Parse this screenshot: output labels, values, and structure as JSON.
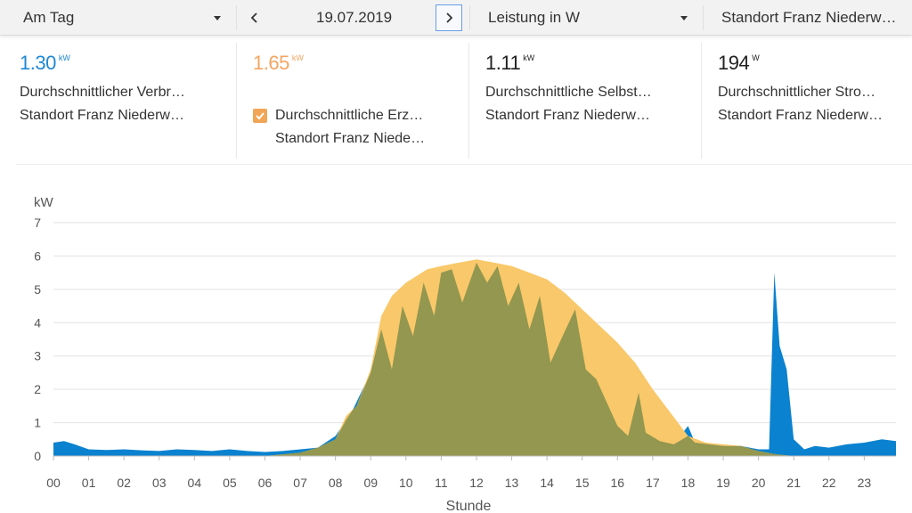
{
  "toolbar": {
    "period": "Am Tag",
    "date": "19.07.2019",
    "prev_icon": "chevron-left-icon",
    "next_icon": "chevron-right-icon",
    "unit": "Leistung in W",
    "site": "Standort Franz Niederw…"
  },
  "stats": [
    {
      "value": "1.30",
      "unit": "kW",
      "label1": "Durchschnittlicher Verbr…",
      "label2": "Standort Franz Niederw…",
      "color": "#1e88d6"
    },
    {
      "value": "1.65",
      "unit": "kW",
      "label1": "Durchschnittliche Erz…",
      "label2": "Standort Franz Niede…",
      "color": "#f4a562",
      "checked": true
    },
    {
      "value": "1.11",
      "unit": "kW",
      "label1": "Durchschnittliche Selbst…",
      "label2": "Standort Franz Niederw…",
      "color": "#222222"
    },
    {
      "value": "194",
      "unit": "W",
      "label1": "Durchschnittlicher Stro…",
      "label2": "Standort Franz Niederw…",
      "color": "#222222"
    }
  ],
  "colors": {
    "consumption": "#0a82cf",
    "production": "#f9c86a",
    "self_consumption": "#93974f",
    "grid": "#e2e2e2",
    "axis_text": "#555555"
  },
  "chart_data": {
    "type": "area",
    "ylabel": "kW",
    "xlabel": "Stunde",
    "ylim": [
      0,
      7
    ],
    "yticks": [
      "0",
      "1",
      "2",
      "3",
      "4",
      "5",
      "6",
      "7"
    ],
    "xticks": [
      "00",
      "01",
      "02",
      "03",
      "04",
      "05",
      "06",
      "07",
      "08",
      "09",
      "10",
      "11",
      "12",
      "13",
      "14",
      "15",
      "16",
      "17",
      "18",
      "19",
      "20",
      "21",
      "22",
      "23"
    ],
    "grid": true,
    "series": [
      {
        "key": "consumption",
        "points": [
          [
            0,
            0.4
          ],
          [
            0.3,
            0.45
          ],
          [
            0.6,
            0.35
          ],
          [
            1,
            0.2
          ],
          [
            1.5,
            0.18
          ],
          [
            2,
            0.2
          ],
          [
            2.5,
            0.17
          ],
          [
            3,
            0.15
          ],
          [
            3.5,
            0.2
          ],
          [
            4,
            0.18
          ],
          [
            4.5,
            0.15
          ],
          [
            5,
            0.2
          ],
          [
            5.5,
            0.15
          ],
          [
            6,
            0.12
          ],
          [
            6.5,
            0.15
          ],
          [
            7,
            0.2
          ],
          [
            7.5,
            0.25
          ],
          [
            8,
            0.6
          ],
          [
            8.5,
            1.4
          ],
          [
            9,
            2.5
          ],
          [
            9.3,
            3.8
          ],
          [
            9.6,
            2.6
          ],
          [
            9.9,
            4.5
          ],
          [
            10.2,
            3.6
          ],
          [
            10.5,
            5.2
          ],
          [
            10.8,
            4.2
          ],
          [
            11,
            5.5
          ],
          [
            11.3,
            5.6
          ],
          [
            11.6,
            4.6
          ],
          [
            12,
            5.8
          ],
          [
            12.3,
            5.2
          ],
          [
            12.6,
            5.7
          ],
          [
            12.9,
            4.5
          ],
          [
            13.2,
            5.2
          ],
          [
            13.5,
            3.8
          ],
          [
            13.8,
            4.8
          ],
          [
            14.1,
            2.8
          ],
          [
            14.4,
            3.5
          ],
          [
            14.8,
            4.4
          ],
          [
            15.1,
            2.6
          ],
          [
            15.4,
            2.3
          ],
          [
            15.7,
            1.6
          ],
          [
            16,
            0.9
          ],
          [
            16.3,
            0.6
          ],
          [
            16.6,
            1.9
          ],
          [
            16.8,
            0.7
          ],
          [
            17.2,
            0.45
          ],
          [
            17.6,
            0.35
          ],
          [
            18,
            0.9
          ],
          [
            18.2,
            0.4
          ],
          [
            18.6,
            0.35
          ],
          [
            19,
            0.3
          ],
          [
            19.5,
            0.3
          ],
          [
            20,
            0.2
          ],
          [
            20.3,
            0.2
          ],
          [
            20.45,
            5.5
          ],
          [
            20.6,
            3.3
          ],
          [
            20.8,
            2.6
          ],
          [
            21,
            0.5
          ],
          [
            21.3,
            0.2
          ],
          [
            21.6,
            0.3
          ],
          [
            22,
            0.25
          ],
          [
            22.5,
            0.35
          ],
          [
            23,
            0.4
          ],
          [
            23.5,
            0.5
          ],
          [
            23.9,
            0.45
          ]
        ]
      },
      {
        "key": "production",
        "points": [
          [
            0,
            0.0
          ],
          [
            6,
            0.0
          ],
          [
            6.5,
            0.05
          ],
          [
            7,
            0.1
          ],
          [
            7.5,
            0.25
          ],
          [
            8,
            0.5
          ],
          [
            8.3,
            1.2
          ],
          [
            8.6,
            1.5
          ],
          [
            9,
            2.6
          ],
          [
            9.3,
            4.2
          ],
          [
            9.6,
            4.8
          ],
          [
            10,
            5.2
          ],
          [
            10.3,
            5.4
          ],
          [
            10.6,
            5.6
          ],
          [
            11,
            5.7
          ],
          [
            11.5,
            5.8
          ],
          [
            12,
            5.9
          ],
          [
            12.5,
            5.8
          ],
          [
            13,
            5.7
          ],
          [
            13.5,
            5.5
          ],
          [
            14,
            5.3
          ],
          [
            14.5,
            4.9
          ],
          [
            15,
            4.4
          ],
          [
            15.5,
            3.9
          ],
          [
            16,
            3.4
          ],
          [
            16.5,
            2.8
          ],
          [
            17,
            2.0
          ],
          [
            17.5,
            1.3
          ],
          [
            18,
            0.6
          ],
          [
            18.5,
            0.4
          ],
          [
            19,
            0.35
          ],
          [
            19.5,
            0.3
          ],
          [
            20,
            0.15
          ],
          [
            20.5,
            0.05
          ],
          [
            21,
            0.0
          ],
          [
            23.9,
            0.0
          ]
        ]
      }
    ]
  }
}
